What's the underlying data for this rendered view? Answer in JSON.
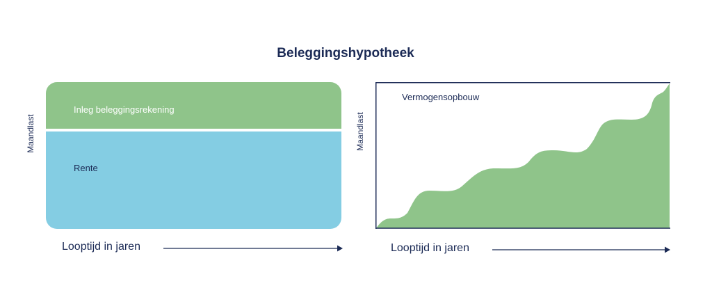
{
  "title": "Beleggingshypotheek",
  "left_diagram": {
    "y_label": "Maandlast",
    "x_label": "Looptijd in jaren",
    "top_band_label": "Inleg beleggingsrekening",
    "bottom_band_label": "Rente",
    "colors": {
      "top_band": "#8fc48a",
      "bottom_band": "#84cde3",
      "text": "#1b2a55"
    }
  },
  "right_diagram": {
    "y_label": "Maandlast",
    "x_label": "Looptijd in jaren",
    "area_label": "Vermogensopbouw",
    "colors": {
      "area": "#8fc48a",
      "axis": "#1b2a55"
    }
  }
}
